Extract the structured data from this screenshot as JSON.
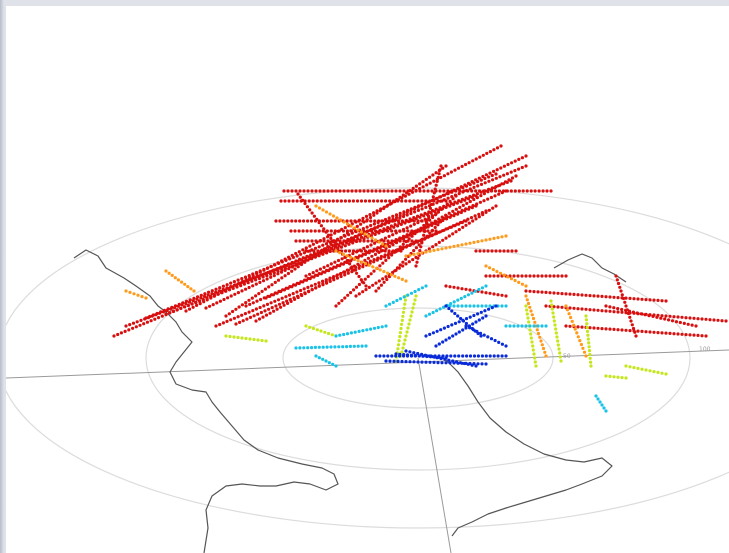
{
  "figure": {
    "range_labels": [
      "50",
      "100"
    ],
    "colors": {
      "background": "#ffffff",
      "range_rings": "#dcdcdc",
      "grid_lines": "#9a9a9a",
      "coastline": "#555555",
      "low": "#0a2bd8",
      "mid_low": "#19c2e6",
      "mid": "#c4e61a",
      "mid_high": "#ff9a1a",
      "high": "#d80f0f"
    },
    "colormap": "jet"
  }
}
